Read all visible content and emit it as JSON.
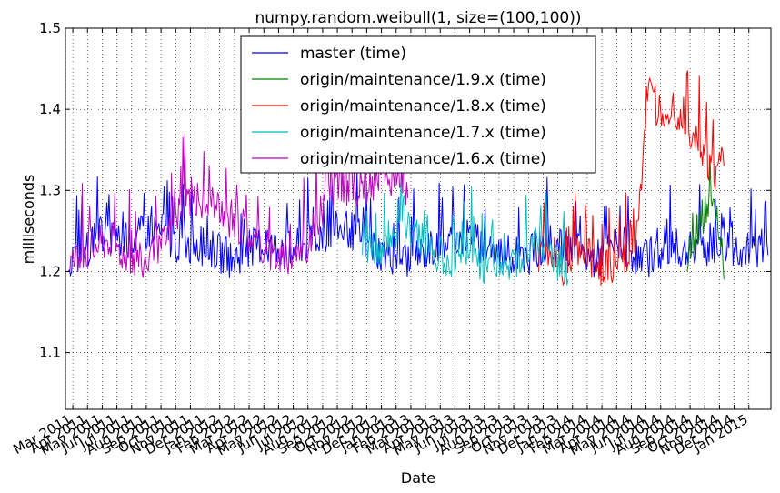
{
  "chart_data": {
    "type": "line",
    "title": "numpy.random.weibull(1, size=(100,100))",
    "xlabel": "Date",
    "ylabel": "milliseconds",
    "ylim": [
      1.03,
      1.5
    ],
    "yticks": [
      "1.1",
      "1.2",
      "1.3",
      "1.4",
      "1.5"
    ],
    "ytick_values": [
      1.1,
      1.2,
      1.3,
      1.4,
      1.5
    ],
    "xlim": [
      0,
      48
    ],
    "xticks": [
      "Mar 2011",
      "Apr 2011",
      "May 2011",
      "Jun 2011",
      "Jul 2011",
      "Aug 2011",
      "Sep 2011",
      "Oct 2011",
      "Nov 2011",
      "Dec 2011",
      "Jan 2012",
      "Feb 2012",
      "Mar 2012",
      "Apr 2012",
      "May 2012",
      "Jun 2012",
      "Jul 2012",
      "Aug 2012",
      "Sep 2012",
      "Oct 2012",
      "Nov 2012",
      "Dec 2012",
      "Jan 2013",
      "Feb 2013",
      "Mar 2013",
      "Apr 2013",
      "May 2013",
      "Jun 2013",
      "Jul 2013",
      "Aug 2013",
      "Sep 2013",
      "Oct 2013",
      "Nov 2013",
      "Dec 2013",
      "Jan 2014",
      "Feb 2014",
      "Mar 2014",
      "Apr 2014",
      "May 2014",
      "Jun 2014",
      "Jul 2014",
      "Aug 2014",
      "Sep 2014",
      "Oct 2014",
      "Nov 2014",
      "Dec 2014",
      "Jan 2015"
    ],
    "grid": true,
    "legend_position": "top-center",
    "series": [
      {
        "name": "master (time)",
        "color": "#0000ff",
        "x": [
          0.2,
          1.2,
          2.6,
          4.2,
          6.0,
          7.5,
          9.8,
          11.3,
          13.3,
          15.3,
          17.2,
          19.2,
          21.4,
          23.4,
          25.5,
          27.2,
          29.2,
          31.2,
          32.7,
          34.3,
          36.1,
          37.8,
          39.2,
          41.0,
          42.8,
          44.5,
          46.5,
          47.8
        ],
        "values": [
          1.2,
          1.21,
          1.23,
          1.22,
          1.24,
          1.22,
          1.215,
          1.2,
          1.22,
          1.21,
          1.23,
          1.24,
          1.21,
          1.2,
          1.22,
          1.23,
          1.21,
          1.2,
          1.22,
          1.21,
          1.2,
          1.22,
          1.2,
          1.21,
          1.21,
          1.22,
          1.21,
          1.22
        ]
      },
      {
        "name": "origin/maintenance/1.9.x (time)",
        "color": "#008000",
        "x": [
          42.3,
          42.9,
          43.6,
          44.0,
          44.4,
          44.8
        ],
        "values": [
          1.2,
          1.23,
          1.26,
          1.28,
          1.25,
          1.19
        ]
      },
      {
        "name": "origin/maintenance/1.8.x (time)",
        "color": "#ff0000",
        "x": [
          32.2,
          33.2,
          33.8,
          34.4,
          35.3,
          36.3,
          37.2,
          38.2,
          38.8,
          39.2,
          39.6,
          40.2,
          41.2,
          42.2,
          43.2,
          44.2,
          44.8
        ],
        "values": [
          1.2,
          1.21,
          1.19,
          1.2,
          1.21,
          1.19,
          1.186,
          1.2,
          1.23,
          1.3,
          1.41,
          1.38,
          1.39,
          1.37,
          1.34,
          1.3,
          1.33
        ]
      },
      {
        "name": "origin/maintenance/1.7.x (time)",
        "color": "#00bfbf",
        "x": [
          20.2,
          21.2,
          22.2,
          23.2,
          24.2,
          25.2,
          26.2,
          27.2,
          28.2,
          29.2,
          30.2,
          31.2,
          32.2,
          33.2,
          34.2
        ],
        "values": [
          1.22,
          1.21,
          1.23,
          1.24,
          1.22,
          1.21,
          1.2,
          1.22,
          1.19,
          1.2,
          1.19,
          1.21,
          1.22,
          1.2,
          1.19
        ]
      },
      {
        "name": "origin/maintenance/1.6.x (time)",
        "color": "#bf00bf",
        "x": [
          0.3,
          1.0,
          2.0,
          3.0,
          4.0,
          5.2,
          6.3,
          8.2,
          10.5,
          12.6,
          14.6,
          16.5,
          18.0,
          20.0,
          22.1,
          23.3
        ],
        "values": [
          1.2,
          1.21,
          1.22,
          1.23,
          1.21,
          1.2,
          1.21,
          1.28,
          1.26,
          1.23,
          1.2,
          1.22,
          1.29,
          1.29,
          1.3,
          1.29
        ]
      }
    ]
  }
}
